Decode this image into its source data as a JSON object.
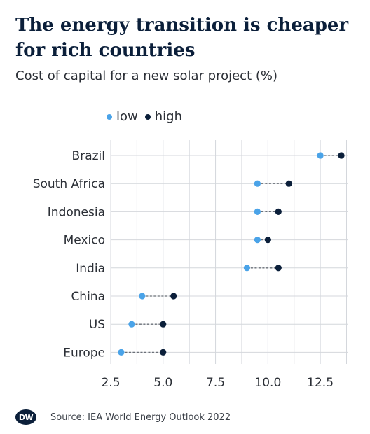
{
  "header": {
    "title": "The energy transition is cheaper for rich countries",
    "subtitle": "Cost of capital for a new solar project (%)"
  },
  "legend": {
    "low_label": "low",
    "high_label": "high"
  },
  "footer": {
    "logo_text": "DW",
    "source": "Source: IEA World Energy Outlook 2022"
  },
  "colors": {
    "low": "#4aa3e8",
    "high": "#0b1f3a",
    "grid": "#d4d7dc",
    "connector": "#6b7078"
  },
  "chart_data": {
    "type": "scatter",
    "title": "The energy transition is cheaper for rich countries",
    "subtitle": "Cost of capital for a new solar project (%)",
    "categories": [
      "Brazil",
      "South Africa",
      "Indonesia",
      "Mexico",
      "India",
      "China",
      "US",
      "Europe"
    ],
    "series": [
      {
        "name": "low",
        "values": [
          12.5,
          9.5,
          9.5,
          9.5,
          9.0,
          4.0,
          3.5,
          3.0
        ]
      },
      {
        "name": "high",
        "values": [
          13.5,
          11.0,
          10.5,
          10.0,
          10.5,
          5.5,
          5.0,
          5.0
        ]
      }
    ],
    "xlim": [
      2.5,
      13.8
    ],
    "xticks": [
      2.5,
      5.0,
      7.5,
      10.0,
      12.5
    ],
    "xtick_labels": [
      "2.5",
      "5.0",
      "7.5",
      "10.0",
      "12.5"
    ],
    "grid": true,
    "legend": "top-left"
  }
}
